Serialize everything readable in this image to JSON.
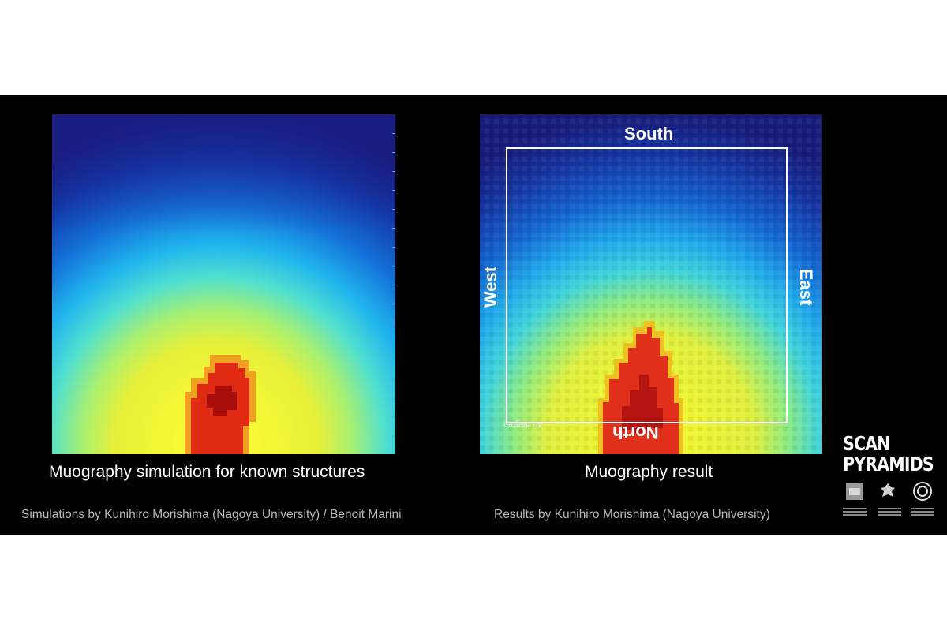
{
  "left_panel": {
    "caption": "Muography simulation for known structures",
    "credit": "Simulations by Kunihiro Morishima (Nagoya University) / Benoit Marini"
  },
  "right_panel": {
    "caption": "Muography result",
    "credit": "Results by Kunihiro Morishima (Nagoya University)",
    "directions": {
      "south": "South",
      "north": "North",
      "west": "West",
      "east": "East"
    },
    "degree_label": "40 degree"
  },
  "logo": {
    "line1": "SCAN",
    "line2": "PYRAMIDS"
  },
  "colors": {
    "background": "#000000",
    "heat_low": "#1a1e8c",
    "heat_mid": "#30d8f0",
    "heat_high": "#f0f020",
    "heat_peak": "#d41a10"
  }
}
